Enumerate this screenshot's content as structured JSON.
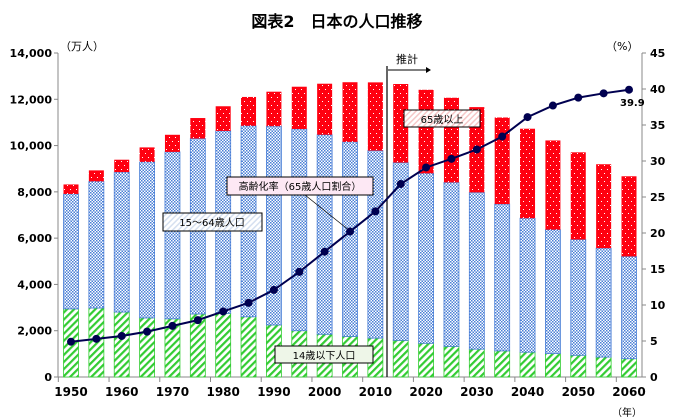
{
  "chart_data": {
    "type": "bar+line",
    "title": "図表2　日本の人口推移",
    "y_left_unit": "（万人）",
    "y_right_unit": "（%）",
    "x_unit": "（年）",
    "ylim_left": [
      0,
      14000
    ],
    "ylim_right": [
      0,
      45
    ],
    "left_ticks": [
      "0",
      "2,000",
      "4,000",
      "6,000",
      "8,000",
      "10,000",
      "12,000",
      "14,000"
    ],
    "right_ticks": [
      "0",
      "5",
      "10",
      "15",
      "20",
      "25",
      "30",
      "35",
      "40",
      "45"
    ],
    "x_tick_labels": [
      "1950",
      "1960",
      "1970",
      "1980",
      "1990",
      "2000",
      "2010",
      "2020",
      "2030",
      "2040",
      "2050",
      "2060"
    ],
    "categories": [
      1950,
      1955,
      1960,
      1965,
      1970,
      1975,
      1980,
      1985,
      1990,
      1995,
      2000,
      2005,
      2010,
      2015,
      2020,
      2025,
      2030,
      2035,
      2040,
      2045,
      2050,
      2055,
      2060
    ],
    "series": [
      {
        "name": "14歳以下人口",
        "type": "stacked-bar",
        "color": "#33cc33",
        "values": [
          2943,
          2980,
          2807,
          2553,
          2515,
          2722,
          2751,
          2603,
          2249,
          2001,
          1847,
          1752,
          1680,
          1583,
          1457,
          1324,
          1204,
          1129,
          1073,
          1012,
          939,
          861,
          791
        ]
      },
      {
        "name": "15～64歳人口",
        "type": "stacked-bar",
        "color": "#4a7fd6",
        "values": [
          4966,
          5473,
          6047,
          6744,
          7212,
          7581,
          7883,
          8251,
          8590,
          8716,
          8622,
          8409,
          8103,
          7682,
          7341,
          7085,
          6773,
          6343,
          5787,
          5353,
          5001,
          4706,
          4418
        ]
      },
      {
        "name": "65歳以上",
        "type": "stacked-bar",
        "color": "#ff0000",
        "values": [
          411,
          475,
          535,
          624,
          739,
          887,
          1065,
          1247,
          1489,
          1826,
          2204,
          2576,
          2948,
          3395,
          3612,
          3657,
          3685,
          3741,
          3868,
          3856,
          3768,
          3626,
          3464
        ]
      },
      {
        "name": "高齢化率（65歳人口割合）",
        "type": "line",
        "axis": "right",
        "color": "#000050",
        "values": [
          4.9,
          5.3,
          5.7,
          6.3,
          7.1,
          7.9,
          9.1,
          10.3,
          12.1,
          14.6,
          17.4,
          20.2,
          23.0,
          26.8,
          29.1,
          30.3,
          31.6,
          33.4,
          36.1,
          37.7,
          38.8,
          39.4,
          39.9
        ]
      }
    ],
    "annotations": {
      "projection": "推計",
      "last_value": "39.9"
    }
  }
}
